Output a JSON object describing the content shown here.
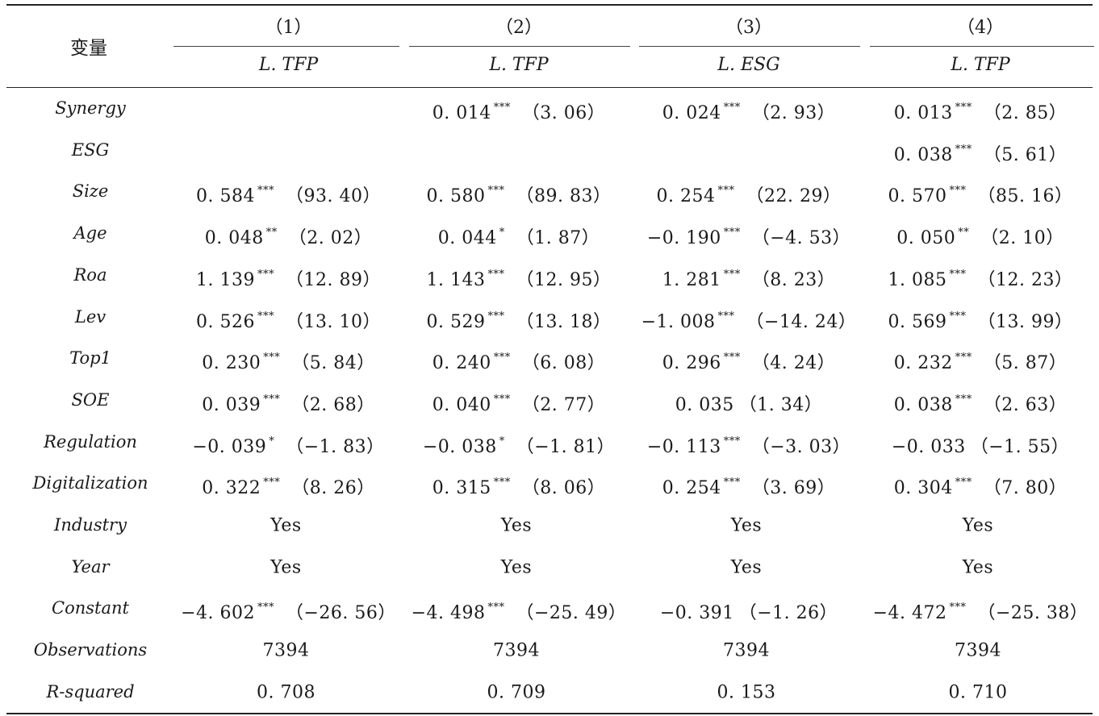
{
  "header": {
    "variable_label": "变量",
    "columns": [
      {
        "number": "（1）",
        "dependent": "L. TFP"
      },
      {
        "number": "（2）",
        "dependent": "L. TFP"
      },
      {
        "number": "（3）",
        "dependent": "L. ESG"
      },
      {
        "number": "（4）",
        "dependent": "L. TFP"
      }
    ]
  },
  "rows": [
    {
      "label": "Synergy",
      "cells": [
        {
          "coef": "",
          "stars": "",
          "t": ""
        },
        {
          "coef": "0. 014",
          "stars": "***",
          "t": "（3. 06）"
        },
        {
          "coef": "0. 024",
          "stars": "***",
          "t": "（2. 93）"
        },
        {
          "coef": "0. 013",
          "stars": "***",
          "t": "（2. 85）"
        }
      ]
    },
    {
      "label": "ESG",
      "cells": [
        {
          "coef": "",
          "stars": "",
          "t": ""
        },
        {
          "coef": "",
          "stars": "",
          "t": ""
        },
        {
          "coef": "",
          "stars": "",
          "t": ""
        },
        {
          "coef": "0. 038",
          "stars": "***",
          "t": "（5. 61）"
        }
      ]
    },
    {
      "label": "Size",
      "cells": [
        {
          "coef": "0. 584",
          "stars": "***",
          "t": "（93. 40）"
        },
        {
          "coef": "0. 580",
          "stars": "***",
          "t": "（89. 83）"
        },
        {
          "coef": "0. 254",
          "stars": "***",
          "t": "（22. 29）"
        },
        {
          "coef": "0. 570",
          "stars": "***",
          "t": "（85. 16）"
        }
      ]
    },
    {
      "label": "Age",
      "cells": [
        {
          "coef": "0. 048",
          "stars": "**",
          "t": "（2. 02）"
        },
        {
          "coef": "0. 044",
          "stars": "*",
          "t": "（1. 87）"
        },
        {
          "coef": "−0. 190",
          "stars": "***",
          "t": "（−4. 53）"
        },
        {
          "coef": "0. 050",
          "stars": "**",
          "t": "（2. 10）"
        }
      ]
    },
    {
      "label": "Roa",
      "cells": [
        {
          "coef": "1. 139",
          "stars": "***",
          "t": "（12. 89）"
        },
        {
          "coef": "1. 143",
          "stars": "***",
          "t": "（12. 95）"
        },
        {
          "coef": "1. 281",
          "stars": "***",
          "t": "（8. 23）"
        },
        {
          "coef": "1. 085",
          "stars": "***",
          "t": "（12. 23）"
        }
      ]
    },
    {
      "label": "Lev",
      "cells": [
        {
          "coef": "0. 526",
          "stars": "***",
          "t": "（13. 10）"
        },
        {
          "coef": "0. 529",
          "stars": "***",
          "t": "（13. 18）"
        },
        {
          "coef": "−1. 008",
          "stars": "***",
          "t": "（−14. 24）"
        },
        {
          "coef": "0. 569",
          "stars": "***",
          "t": "（13. 99）"
        }
      ]
    },
    {
      "label": "Top1",
      "cells": [
        {
          "coef": "0. 230",
          "stars": "***",
          "t": "（5. 84）"
        },
        {
          "coef": "0. 240",
          "stars": "***",
          "t": "（6. 08）"
        },
        {
          "coef": "0. 296",
          "stars": "***",
          "t": "（4. 24）"
        },
        {
          "coef": "0. 232",
          "stars": "***",
          "t": "（5. 87）"
        }
      ]
    },
    {
      "label": "SOE",
      "cells": [
        {
          "coef": "0. 039",
          "stars": "***",
          "t": "（2. 68）"
        },
        {
          "coef": "0. 040",
          "stars": "***",
          "t": "（2. 77）"
        },
        {
          "coef": "0. 035",
          "stars": "",
          "t": "（1. 34）"
        },
        {
          "coef": "0. 038",
          "stars": "***",
          "t": "（2. 63）"
        }
      ]
    },
    {
      "label": "Regulation",
      "cells": [
        {
          "coef": "−0. 039",
          "stars": "*",
          "t": "（−1. 83）"
        },
        {
          "coef": "−0. 038",
          "stars": "*",
          "t": "（−1. 81）"
        },
        {
          "coef": "−0. 113",
          "stars": "***",
          "t": "（−3. 03）"
        },
        {
          "coef": "−0. 033",
          "stars": "",
          "t": "（−1. 55）"
        }
      ]
    },
    {
      "label": "Digitalization",
      "cells": [
        {
          "coef": "0. 322",
          "stars": "***",
          "t": "（8. 26）"
        },
        {
          "coef": "0. 315",
          "stars": "***",
          "t": "（8. 06）"
        },
        {
          "coef": "0. 254",
          "stars": "***",
          "t": "（3. 69）"
        },
        {
          "coef": "0. 304",
          "stars": "***",
          "t": "（7. 80）"
        }
      ]
    },
    {
      "label": "Industry",
      "cells": [
        {
          "coef": "Yes",
          "stars": "",
          "t": ""
        },
        {
          "coef": "Yes",
          "stars": "",
          "t": ""
        },
        {
          "coef": "Yes",
          "stars": "",
          "t": ""
        },
        {
          "coef": "Yes",
          "stars": "",
          "t": ""
        }
      ]
    },
    {
      "label": "Year",
      "cells": [
        {
          "coef": "Yes",
          "stars": "",
          "t": ""
        },
        {
          "coef": "Yes",
          "stars": "",
          "t": ""
        },
        {
          "coef": "Yes",
          "stars": "",
          "t": ""
        },
        {
          "coef": "Yes",
          "stars": "",
          "t": ""
        }
      ]
    },
    {
      "label": "Constant",
      "cells": [
        {
          "coef": "−4. 602",
          "stars": "***",
          "t": "（−26. 56）"
        },
        {
          "coef": "−4. 498",
          "stars": "***",
          "t": "（−25. 49）"
        },
        {
          "coef": "−0. 391",
          "stars": "",
          "t": "（−1. 26）"
        },
        {
          "coef": "−4. 472",
          "stars": "***",
          "t": "（−25. 38）"
        }
      ]
    },
    {
      "label": "Observations",
      "cells": [
        {
          "coef": "7394",
          "stars": "",
          "t": ""
        },
        {
          "coef": "7394",
          "stars": "",
          "t": ""
        },
        {
          "coef": "7394",
          "stars": "",
          "t": ""
        },
        {
          "coef": "7394",
          "stars": "",
          "t": ""
        }
      ]
    },
    {
      "label": "R-squared",
      "cells": [
        {
          "coef": "0. 708",
          "stars": "",
          "t": ""
        },
        {
          "coef": "0. 709",
          "stars": "",
          "t": ""
        },
        {
          "coef": "0. 153",
          "stars": "",
          "t": ""
        },
        {
          "coef": "0. 710",
          "stars": "",
          "t": ""
        }
      ]
    }
  ]
}
